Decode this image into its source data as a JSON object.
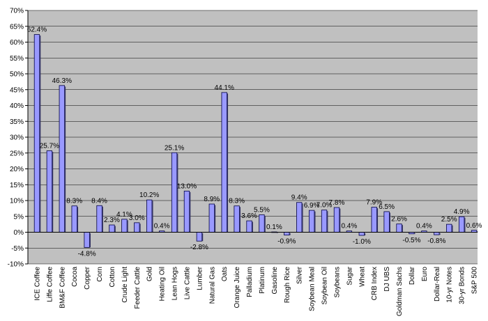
{
  "chart_data": {
    "type": "bar",
    "title": "",
    "xlabel": "",
    "ylabel": "",
    "ylim": [
      -10,
      70
    ],
    "y_ticks": [
      -10,
      -5,
      0,
      5,
      10,
      15,
      20,
      25,
      30,
      35,
      40,
      45,
      50,
      55,
      60,
      65,
      70
    ],
    "y_tick_labels": [
      "-10%",
      "-5%",
      "0%",
      "5%",
      "10%",
      "15%",
      "20%",
      "25%",
      "30%",
      "35%",
      "40%",
      "45%",
      "50%",
      "55%",
      "60%",
      "65%",
      "70%"
    ],
    "grid": "horizontal",
    "legend": "none",
    "plot_background": "#c0c0c0",
    "bar_color": "#9999ff",
    "categories": [
      "ICE Coffee",
      "Liffe Coffee",
      "BM&F Coffee",
      "Cocoa",
      "Copper",
      "Corn",
      "Cotton",
      "Crude Light",
      "Feeder Cattle",
      "Gold",
      "Heating Oil",
      "Lean Hogs",
      "Live Cattle",
      "Lumber",
      "Natural Gas",
      "Oats",
      "Orange Juice",
      "Palladium",
      "Platinum",
      "Gasoline",
      "Rough Rice",
      "Silver",
      "Soybean Meal",
      "Soybean Oil",
      "Soybeans",
      "Sugar",
      "Wheat",
      "CRB Index",
      "DJ UBS",
      "Goldman Sachs",
      "Dollar",
      "Euro",
      "Dollar-Real",
      "10-yr Notes",
      "30-yr Bonds",
      "S&P 500"
    ],
    "values": [
      62.4,
      25.7,
      46.3,
      8.3,
      -4.8,
      8.4,
      2.3,
      4.1,
      3.0,
      10.2,
      0.4,
      25.1,
      13.0,
      -2.8,
      8.9,
      44.1,
      8.3,
      3.6,
      5.5,
      0.1,
      -0.9,
      9.4,
      6.9,
      7.0,
      7.8,
      0.4,
      -1.0,
      7.9,
      6.5,
      2.6,
      -0.5,
      0.4,
      -0.8,
      2.5,
      4.9,
      0.6
    ],
    "data_labels": [
      "62.4%",
      "25.7%",
      "46.3%",
      "8.3%",
      "-4.8%",
      "8.4%",
      "2.3%",
      "4.1%",
      "3.0%",
      "10.2%",
      "0.4%",
      "25.1%",
      "13.0%",
      "-2.8%",
      "8.9%",
      "44.1%",
      "8.3%",
      "3.6%",
      "5.5%",
      "0.1%",
      "-0.9%",
      "9.4%",
      "6.9%",
      "7.0%",
      "7.8%",
      "0.4%",
      "-1.0%",
      "7.9%",
      "6.5%",
      "2.6%",
      "-0.5%",
      "0.4%",
      "-0.8%",
      "2.5%",
      "4.9%",
      "0.6%"
    ]
  }
}
